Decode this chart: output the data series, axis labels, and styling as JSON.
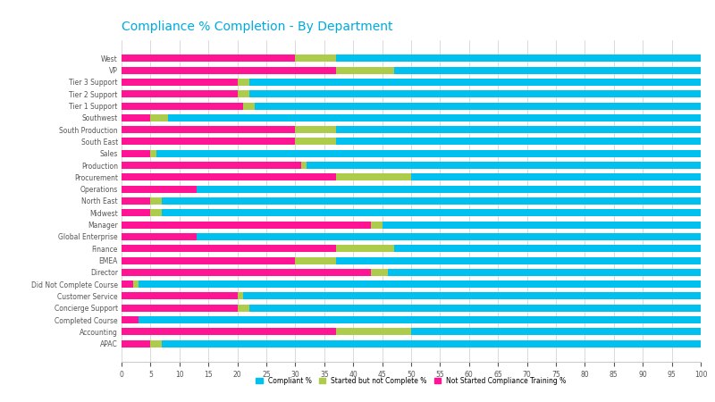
{
  "title": "Compliance % Completion - By Department",
  "title_color": "#00AADD",
  "categories": [
    "West",
    "VP",
    "Tier 3 Support",
    "Tier 2 Support",
    "Tier 1 Support",
    "Southwest",
    "South Production",
    "South East",
    "Sales",
    "Production",
    "Procurement",
    "Operations",
    "North East",
    "Midwest",
    "Manager",
    "Global Enterprise",
    "Finance",
    "EMEA",
    "Director",
    "Did Not Complete Course",
    "Customer Service",
    "Concierge Support",
    "Completed Course",
    "Accounting",
    "APAC"
  ],
  "not_started": [
    30,
    37,
    20,
    20,
    21,
    5,
    30,
    30,
    5,
    31,
    37,
    13,
    5,
    5,
    43,
    13,
    37,
    30,
    43,
    2,
    20,
    20,
    3,
    37,
    5
  ],
  "started": [
    7,
    10,
    2,
    2,
    2,
    3,
    7,
    7,
    1,
    1,
    13,
    0,
    2,
    2,
    2,
    0,
    10,
    7,
    3,
    1,
    1,
    2,
    0,
    13,
    2
  ],
  "compliant": [
    63,
    53,
    78,
    78,
    77,
    92,
    63,
    63,
    94,
    68,
    50,
    87,
    93,
    93,
    55,
    87,
    53,
    63,
    54,
    97,
    79,
    78,
    97,
    50,
    93
  ],
  "color_not_started": "#FF1493",
  "color_started": "#ADCC4C",
  "color_compliant": "#00C0EF",
  "bar_height": 0.6,
  "xlim": [
    0,
    100
  ],
  "background_color": "#FFFFFF",
  "legend_labels": [
    "Compliant %",
    "Started but not Complete %",
    "Not Started Compliance Training %"
  ],
  "xlabel": "",
  "ylabel": "",
  "figsize": [
    8.0,
    4.5
  ],
  "dpi": 100,
  "grid_color": "#CCCCCC",
  "tick_fontsize": 5.5,
  "label_fontsize": 5.5,
  "title_fontsize": 10
}
